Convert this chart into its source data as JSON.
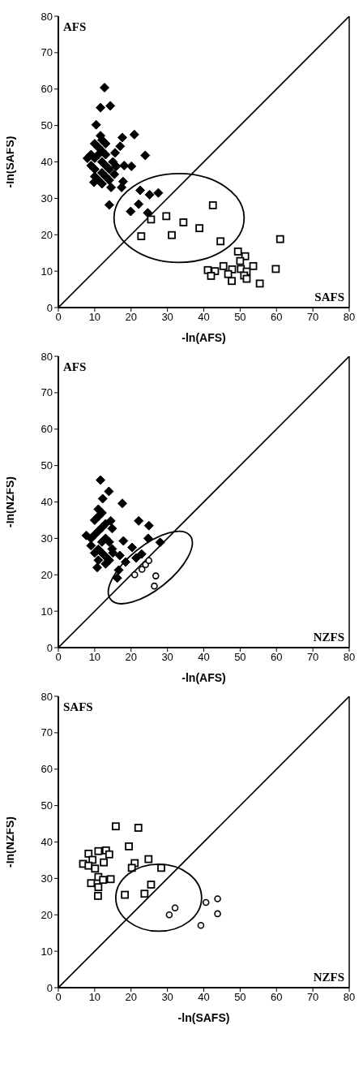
{
  "chart_data": [
    {
      "type": "scatter",
      "xlabel": "-ln(AFS)",
      "ylabel": "-ln(SAFS)",
      "annotations": [
        "AFS",
        "SAFS"
      ],
      "xlim": [
        0,
        80
      ],
      "ylim": [
        0,
        80
      ],
      "xticks": [
        0,
        10,
        20,
        30,
        40,
        50,
        60,
        70,
        80
      ],
      "yticks": [
        0,
        10,
        20,
        30,
        40,
        50,
        60,
        70,
        80
      ],
      "grid": false,
      "legend": false,
      "series": [
        {
          "type": "line",
          "color": "#000000",
          "marker": "none",
          "x": [
            0,
            80
          ],
          "values": [
            0,
            80
          ]
        },
        {
          "color": "#000000",
          "marker": "diamond",
          "x": [
            12.7,
            11.6,
            14.3,
            10.4,
            20.9,
            17.6,
            11.6,
            17.0,
            23.9,
            15.6,
            8.0,
            15.9,
            20.1,
            18.1,
            15.4,
            17.8,
            9.8,
            14.5,
            17.4,
            22.5,
            25.1,
            27.5,
            22.1,
            14.0,
            19.9,
            24.6,
            10,
            11,
            12,
            13,
            9,
            10,
            12,
            13,
            9,
            10,
            12,
            13,
            10,
            11,
            12,
            14,
            15,
            13,
            12,
            11,
            14
          ],
          "values": [
            60.4,
            54.9,
            55.4,
            50.2,
            47.5,
            46.7,
            47.2,
            44.3,
            41.8,
            42.5,
            41.0,
            38.8,
            38.8,
            39.0,
            36.6,
            34.6,
            34.4,
            33.0,
            33.0,
            32.2,
            31.0,
            31.5,
            28.4,
            28.2,
            26.4,
            26.0,
            45,
            44,
            43,
            42,
            42,
            41,
            40,
            39,
            39,
            38,
            37,
            36,
            36,
            35,
            34,
            38,
            40,
            45,
            46,
            42,
            35
          ]
        },
        {
          "color": "#000000",
          "marker": "square",
          "x": [
            25.5,
            29.7,
            34.4,
            38.8,
            42.5,
            22.8,
            31.2,
            44.6,
            61.0,
            49.4,
            51.4,
            50.0,
            53.6,
            59.8,
            45.4,
            47.8,
            41.1,
            43.1,
            42.0,
            46.7,
            50.2,
            51.8,
            51.1,
            47.7,
            51.8,
            55.4
          ],
          "values": [
            24.2,
            25.1,
            23.4,
            21.8,
            28.1,
            19.6,
            19.9,
            18.2,
            18.8,
            15.4,
            14.1,
            12.8,
            11.4,
            10.6,
            11.4,
            10.5,
            10.3,
            10.0,
            8.7,
            9.2,
            10.6,
            9.9,
            8.8,
            7.3,
            7.9,
            6.6
          ]
        }
      ]
    },
    {
      "type": "scatter",
      "xlabel": "-ln(AFS)",
      "ylabel": "-ln(NZFS)",
      "annotations": [
        "AFS",
        "NZFS"
      ],
      "xlim": [
        0,
        80
      ],
      "ylim": [
        0,
        80
      ],
      "xticks": [
        0,
        10,
        20,
        30,
        40,
        50,
        60,
        70,
        80
      ],
      "yticks": [
        0,
        10,
        20,
        30,
        40,
        50,
        60,
        70,
        80
      ],
      "grid": false,
      "legend": false,
      "series": [
        {
          "type": "line",
          "color": "#000000",
          "marker": "none",
          "x": [
            0,
            80
          ],
          "values": [
            0,
            80
          ]
        },
        {
          "color": "#000000",
          "marker": "diamond",
          "x": [
            11.6,
            13.9,
            12.2,
            17.6,
            14.4,
            22.1,
            24.9,
            14.8,
            7.7,
            24.7,
            17.9,
            20.3,
            14.8,
            16.9,
            18.5,
            10.7,
            16.6,
            16.2,
            21.4,
            22.9,
            28.0,
            10,
            11,
            12,
            13,
            9,
            10,
            11,
            12,
            13,
            14,
            11,
            12,
            13,
            14,
            15,
            11,
            12,
            13,
            9,
            10,
            11
          ],
          "values": [
            46.0,
            42.9,
            40.9,
            39.6,
            34.8,
            34.8,
            33.5,
            32.7,
            30.8,
            30.0,
            29.3,
            27.5,
            27.1,
            25.3,
            23.5,
            22.0,
            21.3,
            19.1,
            24.6,
            25.7,
            28.9,
            35,
            36,
            37,
            34,
            30,
            31,
            32,
            33,
            30,
            29,
            27,
            26,
            25,
            24,
            26,
            38,
            29,
            23,
            28,
            26,
            24
          ]
        },
        {
          "color": "#000000",
          "marker": "circle",
          "x": [
            21.0,
            23.0,
            24.0,
            24.9,
            26.8,
            26.4
          ],
          "values": [
            20.0,
            21.5,
            22.8,
            23.9,
            19.7,
            16.9
          ]
        }
      ]
    },
    {
      "type": "scatter",
      "xlabel": "-ln(SAFS)",
      "ylabel": "-ln(NZFS)",
      "annotations": [
        "SAFS",
        "NZFS"
      ],
      "xlim": [
        0,
        80
      ],
      "ylim": [
        0,
        80
      ],
      "xticks": [
        0,
        10,
        20,
        30,
        40,
        50,
        60,
        70,
        80
      ],
      "yticks": [
        0,
        10,
        20,
        30,
        40,
        50,
        60,
        70,
        80
      ],
      "grid": false,
      "legend": false,
      "series": [
        {
          "type": "line",
          "color": "#000000",
          "marker": "none",
          "x": [
            0,
            80
          ],
          "values": [
            0,
            80
          ]
        },
        {
          "color": "#000000",
          "marker": "square",
          "x": [
            15.8,
            22.0,
            19.4,
            8.3,
            11.0,
            13.1,
            14.0,
            6.8,
            9.4,
            8.3,
            12.5,
            10.1,
            24.8,
            21.0,
            20.2,
            28.3,
            11.0,
            9.0,
            12.3,
            14.4,
            11.0,
            10.9,
            25.5,
            23.7,
            18.3
          ],
          "values": [
            44.3,
            43.9,
            38.8,
            36.8,
            37.5,
            37.7,
            36.6,
            34.0,
            35.1,
            33.5,
            34.4,
            32.7,
            35.3,
            34.2,
            32.9,
            32.9,
            30.4,
            28.7,
            29.6,
            29.8,
            27.6,
            25.2,
            28.3,
            25.8,
            25.5
          ]
        },
        {
          "color": "#000000",
          "marker": "circle",
          "x": [
            32.1,
            30.5,
            40.6,
            43.8,
            43.8,
            39.2
          ],
          "values": [
            21.9,
            20.0,
            23.4,
            24.4,
            20.3,
            17.1
          ]
        }
      ]
    }
  ]
}
